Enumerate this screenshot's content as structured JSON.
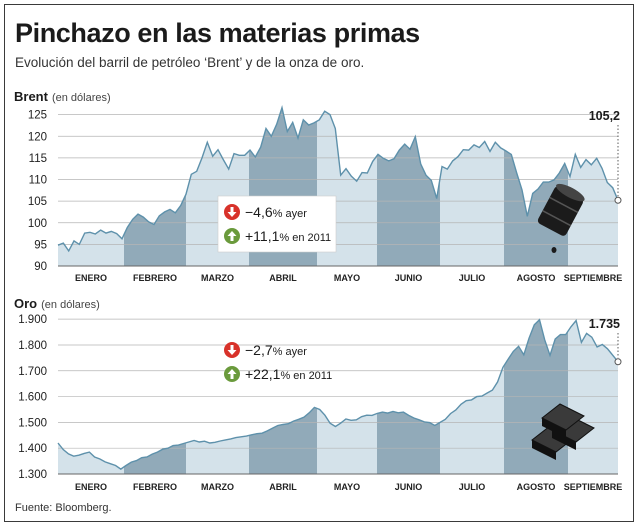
{
  "header": {
    "title": "Pinchazo en las materias primas",
    "subtitle": "Evolución del barril de petróleo ‘Brent’ y de la onza de oro."
  },
  "source": "Fuente: Bloomberg.",
  "colors": {
    "light_band": "#d4e2ea",
    "dark_band": "#91aab9",
    "line": "#5e91ab",
    "down": "#d8322a",
    "up": "#6a9a3c"
  },
  "icons": {
    "down": "arrow-down-icon",
    "up": "arrow-up-icon",
    "barrel": "oil-barrel-icon",
    "gold": "gold-bars-icon"
  },
  "chart_data": [
    {
      "type": "area",
      "title": "Brent",
      "unit": "(en dólares)",
      "months": [
        "ENERO",
        "FEBRERO",
        "MARZO",
        "ABRIL",
        "MAYO",
        "JUNIO",
        "JULIO",
        "AGOSTO",
        "SEPTIEMBRE"
      ],
      "ylim": [
        90,
        127
      ],
      "yticks": [
        90,
        95,
        100,
        105,
        110,
        115,
        120,
        125
      ],
      "ytick_labels": [
        "90",
        "95",
        "100",
        "105",
        "110",
        "115",
        "120",
        "125"
      ],
      "last_value_label": "105,2",
      "last_value": 105.2,
      "stats": [
        {
          "direction": "down",
          "value": "−4,6",
          "suffix": "% ayer"
        },
        {
          "direction": "up",
          "value": "+11,1",
          "suffix": "% en 2011"
        }
      ],
      "values": [
        94.8,
        95.3,
        93.5,
        95.8,
        95.0,
        97.6,
        97.8,
        97.4,
        98.3,
        97.6,
        98.0,
        97.5,
        96.3,
        98.9,
        100.8,
        102.0,
        101.3,
        100.2,
        99.6,
        101.6,
        102.5,
        103.1,
        102.3,
        104.0,
        106.6,
        111.2,
        111.9,
        115.0,
        118.6,
        115.4,
        116.9,
        114.6,
        112.4,
        116.0,
        115.6,
        115.6,
        116.8,
        115.2,
        117.5,
        121.8,
        120.0,
        122.8,
        126.6,
        121.1,
        123.2,
        119.6,
        123.8,
        122.6,
        123.1,
        123.8,
        125.8,
        125.0,
        121.8,
        111.0,
        112.5,
        110.8,
        109.6,
        111.6,
        111.5,
        114.2,
        115.8,
        114.9,
        114.3,
        114.8,
        116.8,
        118.2,
        117.0,
        119.9,
        113.6,
        111.0,
        109.8,
        105.6,
        113.0,
        112.4,
        114.3,
        115.3,
        116.9,
        116.8,
        118.0,
        117.4,
        118.8,
        116.5,
        118.6,
        117.3,
        116.6,
        115.8,
        111.5,
        107.6,
        101.5,
        106.8,
        107.8,
        109.4,
        109.4,
        109.9,
        111.5,
        113.7,
        110.7,
        115.8,
        112.8,
        114.6,
        113.4,
        114.9,
        112.6,
        109.3,
        108.1,
        105.2
      ]
    },
    {
      "type": "area",
      "title": "Oro",
      "unit": "(en dólares)",
      "months": [
        "ENERO",
        "FEBRERO",
        "MARZO",
        "ABRIL",
        "MAYO",
        "JUNIO",
        "JULIO",
        "AGOSTO",
        "SEPTIEMBRE"
      ],
      "ylim": [
        1300,
        1920
      ],
      "yticks": [
        1300,
        1400,
        1500,
        1600,
        1700,
        1800,
        1900
      ],
      "ytick_labels": [
        "1.300",
        "1.400",
        "1.500",
        "1.600",
        "1.700",
        "1.800",
        "1.900"
      ],
      "last_value_label": "1.735",
      "last_value": 1735,
      "stats": [
        {
          "direction": "down",
          "value": "−2,7",
          "suffix": "% ayer"
        },
        {
          "direction": "up",
          "value": "+22,1",
          "suffix": "% en 2011"
        }
      ],
      "values": [
        1420,
        1395,
        1378,
        1369,
        1373,
        1380,
        1385,
        1366,
        1358,
        1347,
        1340,
        1333,
        1319,
        1333,
        1346,
        1352,
        1363,
        1366,
        1377,
        1385,
        1396,
        1400,
        1410,
        1412,
        1418,
        1424,
        1430,
        1424,
        1427,
        1420,
        1423,
        1428,
        1432,
        1436,
        1441,
        1444,
        1447,
        1452,
        1456,
        1458,
        1467,
        1478,
        1488,
        1492,
        1495,
        1505,
        1512,
        1520,
        1537,
        1558,
        1550,
        1528,
        1497,
        1484,
        1497,
        1513,
        1508,
        1510,
        1522,
        1528,
        1527,
        1535,
        1540,
        1536,
        1542,
        1537,
        1540,
        1527,
        1517,
        1510,
        1502,
        1499,
        1488,
        1500,
        1512,
        1534,
        1548,
        1570,
        1584,
        1587,
        1600,
        1602,
        1614,
        1625,
        1657,
        1713,
        1745,
        1775,
        1795,
        1762,
        1826,
        1878,
        1898,
        1820,
        1760,
        1823,
        1840,
        1840,
        1870,
        1895,
        1810,
        1845,
        1830,
        1792,
        1802,
        1785,
        1760,
        1735
      ]
    }
  ]
}
